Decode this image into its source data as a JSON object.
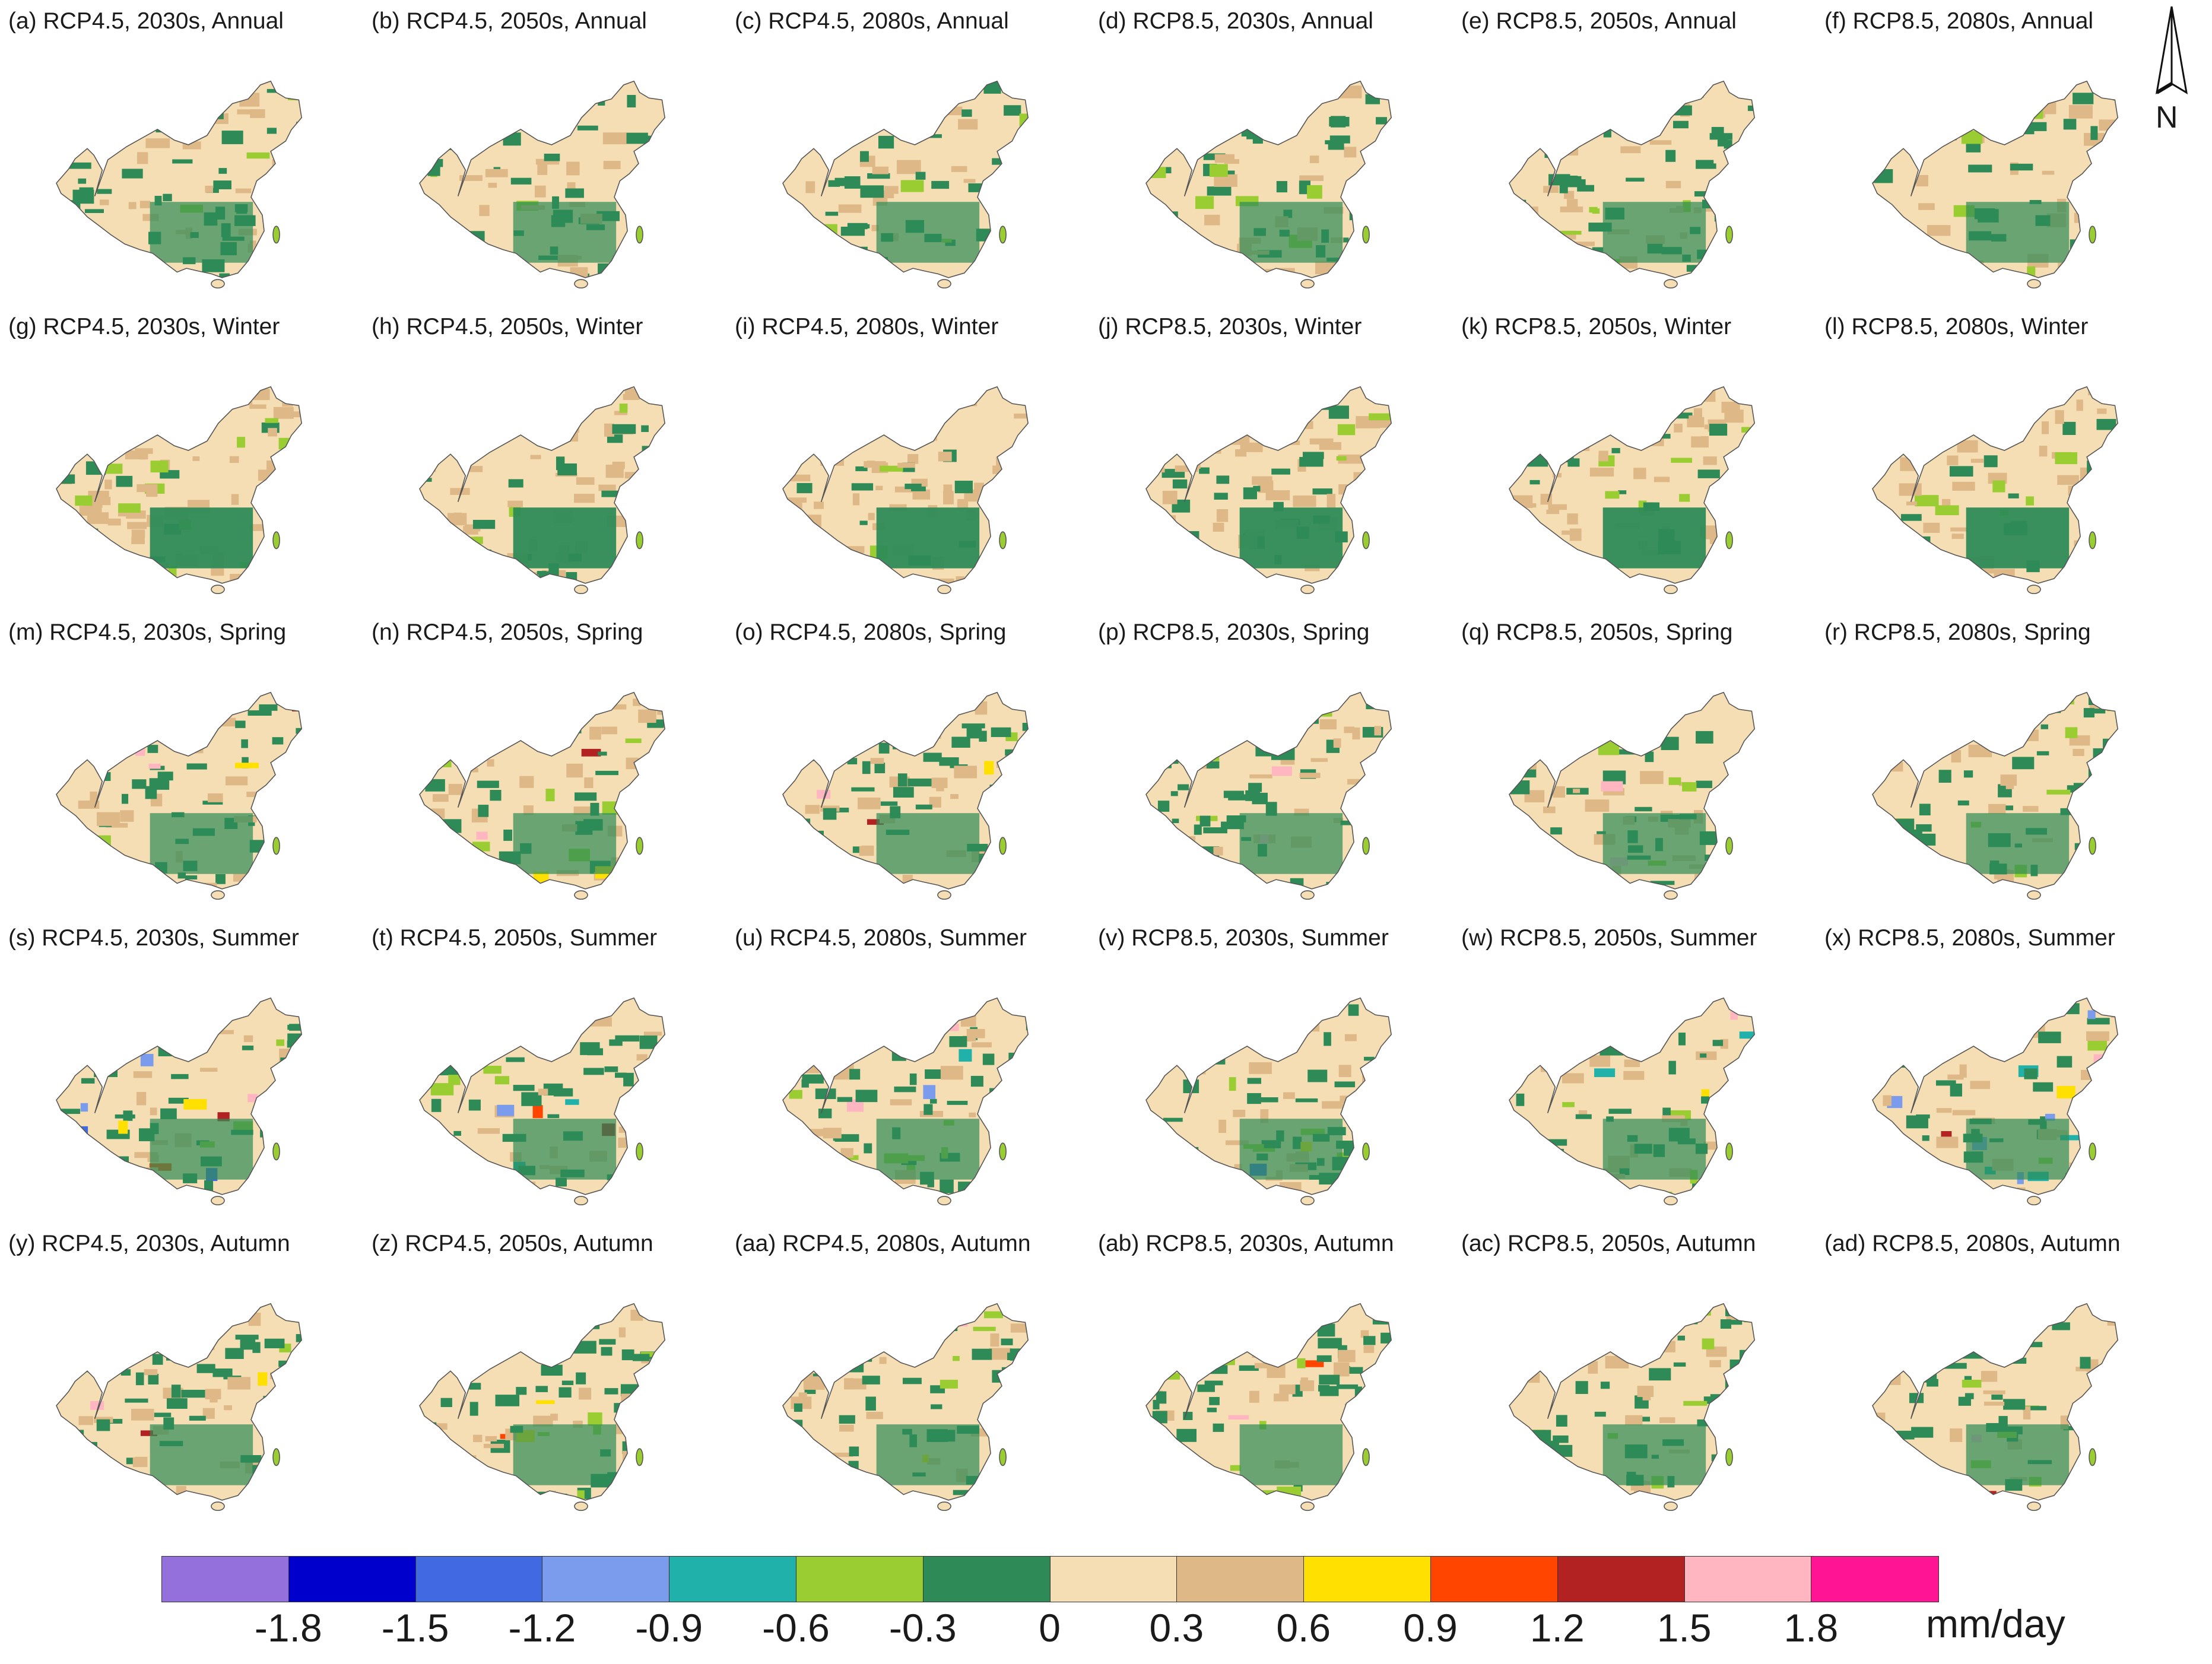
{
  "figure": {
    "panels": [
      {
        "label": "(a) RCP4.5, 2030s, Annual"
      },
      {
        "label": "(b) RCP4.5, 2050s, Annual"
      },
      {
        "label": "(c) RCP4.5, 2080s, Annual"
      },
      {
        "label": "(d) RCP8.5, 2030s, Annual"
      },
      {
        "label": "(e) RCP8.5, 2050s, Annual"
      },
      {
        "label": "(f) RCP8.5, 2080s, Annual"
      },
      {
        "label": "(g) RCP4.5, 2030s, Winter"
      },
      {
        "label": "(h) RCP4.5, 2050s, Winter"
      },
      {
        "label": "(i) RCP4.5, 2080s, Winter"
      },
      {
        "label": "(j) RCP8.5, 2030s, Winter"
      },
      {
        "label": "(k) RCP8.5, 2050s, Winter"
      },
      {
        "label": "(l) RCP8.5, 2080s, Winter"
      },
      {
        "label": "(m) RCP4.5, 2030s, Spring"
      },
      {
        "label": "(n) RCP4.5, 2050s, Spring"
      },
      {
        "label": "(o) RCP4.5, 2080s, Spring"
      },
      {
        "label": "(p) RCP8.5, 2030s, Spring"
      },
      {
        "label": "(q) RCP8.5, 2050s, Spring"
      },
      {
        "label": "(r) RCP8.5, 2080s, Spring"
      },
      {
        "label": "(s) RCP4.5, 2030s, Summer"
      },
      {
        "label": "(t) RCP4.5, 2050s, Summer"
      },
      {
        "label": "(u) RCP4.5, 2080s, Summer"
      },
      {
        "label": "(v) RCP8.5, 2030s, Summer"
      },
      {
        "label": "(w) RCP8.5, 2050s, Summer"
      },
      {
        "label": "(x) RCP8.5, 2080s, Summer"
      },
      {
        "label": "(y) RCP4.5, 2030s, Autumn"
      },
      {
        "label": "(z) RCP4.5, 2050s, Autumn"
      },
      {
        "label": "(aa) RCP4.5, 2080s, Autumn"
      },
      {
        "label": "(ab) RCP8.5, 2030s, Autumn"
      },
      {
        "label": "(ac) RCP8.5, 2050s, Autumn"
      },
      {
        "label": "(ad) RCP8.5, 2080s, Autumn"
      }
    ]
  },
  "north_arrow": {
    "label": "N"
  },
  "legend": {
    "unit": "mm/day",
    "colors": [
      "#9370db",
      "#0000cd",
      "#4169e1",
      "#7b9bec",
      "#20b2aa",
      "#9acd32",
      "#2e8b57",
      "#f5deb3",
      "#deb887",
      "#ffe000",
      "#ff4500",
      "#b22222",
      "#ffb6c1",
      "#ff1493"
    ],
    "ticks": [
      "-1.8",
      "-1.5",
      "-1.2",
      "-0.9",
      "-0.6",
      "-0.3",
      "0",
      "0.3",
      "0.6",
      "0.9",
      "1.2",
      "1.5",
      "1.8"
    ]
  },
  "map_colors": {
    "land": "#f5deb3",
    "decrease": "#2e8b57",
    "light_green": "#9acd32",
    "tan": "#deb887",
    "border": "#555555"
  }
}
